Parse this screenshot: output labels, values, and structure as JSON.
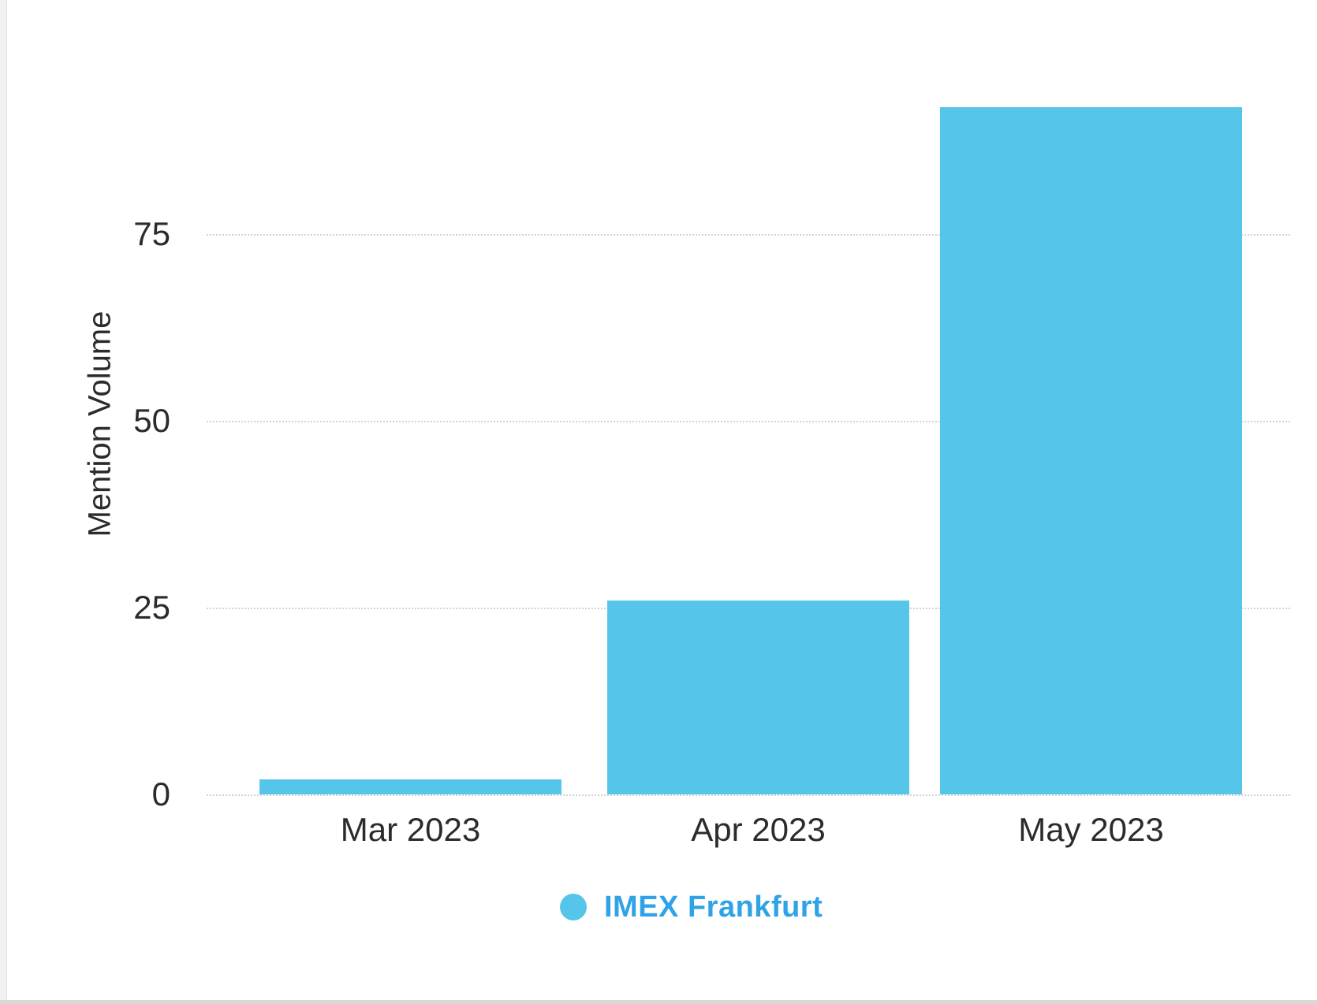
{
  "page": {
    "background": "#ffffff",
    "left_edge_color": "#f1f1ef",
    "bottom_edge_color": "#d9d9d7"
  },
  "chart_data": {
    "type": "bar",
    "title": "",
    "categories": [
      "Mar 2023",
      "Apr 2023",
      "May 2023"
    ],
    "series": [
      {
        "name": "IMEX Frankfurt",
        "color": "#55c6ea",
        "values": [
          2,
          26,
          92
        ]
      }
    ],
    "xlabel": "",
    "ylabel": "Mention Volume",
    "ylim": [
      0,
      100
    ],
    "yticks": [
      0,
      25,
      50,
      75
    ],
    "grid": "horizontal dotted",
    "grid_color": "#d0d3d4",
    "axis_text_color": "#2b2b2b",
    "legend_position": "bottom-center",
    "legend_text_color": "#2fa3e6"
  }
}
